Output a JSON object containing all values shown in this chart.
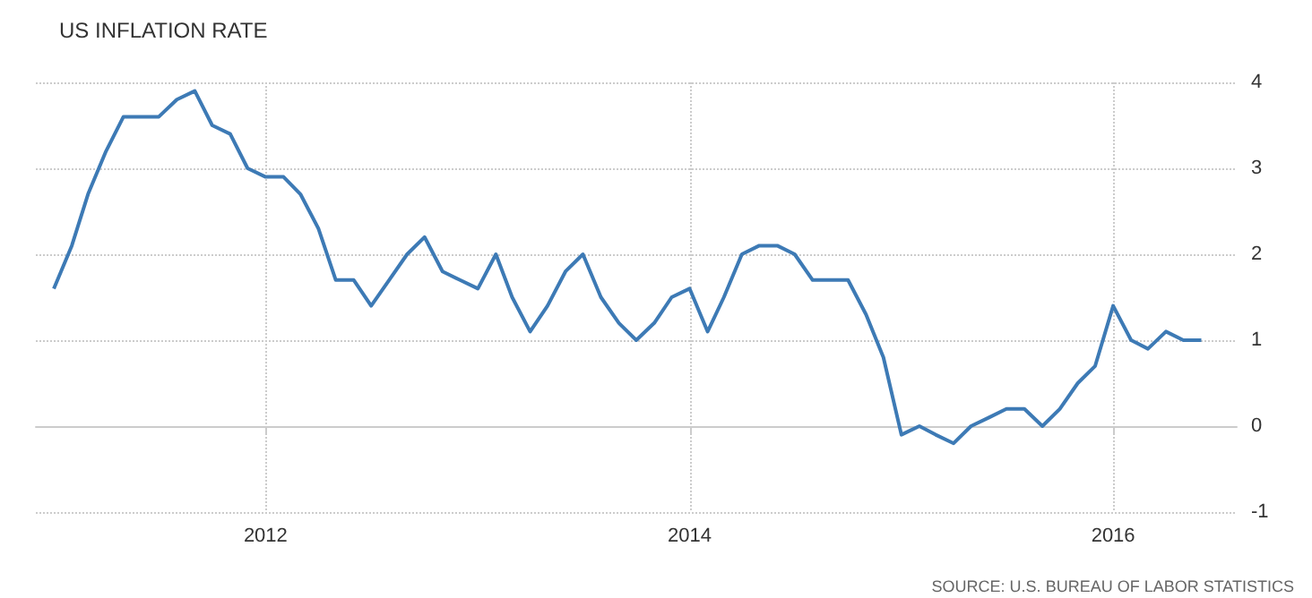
{
  "chart_data": {
    "type": "line",
    "title": "US INFLATION RATE",
    "annotations": [
      "SOURCE: U.S. BUREAU OF LABOR STATISTICS"
    ],
    "x": [
      "2011-01",
      "2011-02",
      "2011-03",
      "2011-04",
      "2011-05",
      "2011-06",
      "2011-07",
      "2011-08",
      "2011-09",
      "2011-10",
      "2011-11",
      "2011-12",
      "2012-01",
      "2012-02",
      "2012-03",
      "2012-04",
      "2012-05",
      "2012-06",
      "2012-07",
      "2012-08",
      "2012-09",
      "2012-10",
      "2012-11",
      "2012-12",
      "2013-01",
      "2013-02",
      "2013-03",
      "2013-04",
      "2013-05",
      "2013-06",
      "2013-07",
      "2013-08",
      "2013-09",
      "2013-10",
      "2013-11",
      "2013-12",
      "2014-01",
      "2014-02",
      "2014-03",
      "2014-04",
      "2014-05",
      "2014-06",
      "2014-07",
      "2014-08",
      "2014-09",
      "2014-10",
      "2014-11",
      "2014-12",
      "2015-01",
      "2015-02",
      "2015-03",
      "2015-04",
      "2015-05",
      "2015-06",
      "2015-07",
      "2015-08",
      "2015-09",
      "2015-10",
      "2015-11",
      "2015-12",
      "2016-01",
      "2016-02",
      "2016-03",
      "2016-04",
      "2016-05",
      "2016-06"
    ],
    "series": [
      {
        "color": "#3d7ab5",
        "values": [
          1.6,
          2.1,
          2.7,
          3.2,
          3.6,
          3.6,
          3.6,
          3.8,
          3.9,
          3.5,
          3.4,
          3.0,
          2.9,
          2.9,
          2.7,
          2.3,
          1.7,
          1.7,
          1.4,
          1.7,
          2.0,
          2.2,
          1.8,
          1.7,
          1.6,
          2.0,
          1.5,
          1.1,
          1.4,
          1.8,
          2.0,
          1.5,
          1.2,
          1.0,
          1.2,
          1.5,
          1.6,
          1.1,
          1.5,
          2.0,
          2.1,
          2.1,
          2.0,
          1.7,
          1.7,
          1.7,
          1.3,
          0.8,
          -0.1,
          0.0,
          -0.1,
          -0.2,
          0.0,
          0.1,
          0.2,
          0.2,
          0.0,
          0.2,
          0.5,
          0.7,
          1.4,
          1.0,
          0.9,
          1.1,
          1.0,
          1.0
        ]
      }
    ],
    "xlim": [
      "2010-12",
      "2016-08"
    ],
    "xticks": [
      "2012",
      "2014",
      "2016"
    ],
    "ylim": [
      -1,
      4
    ],
    "yticks": [
      -1,
      0,
      1,
      2,
      3,
      4
    ],
    "grid": true,
    "marker": "none",
    "line_style": "solid"
  }
}
